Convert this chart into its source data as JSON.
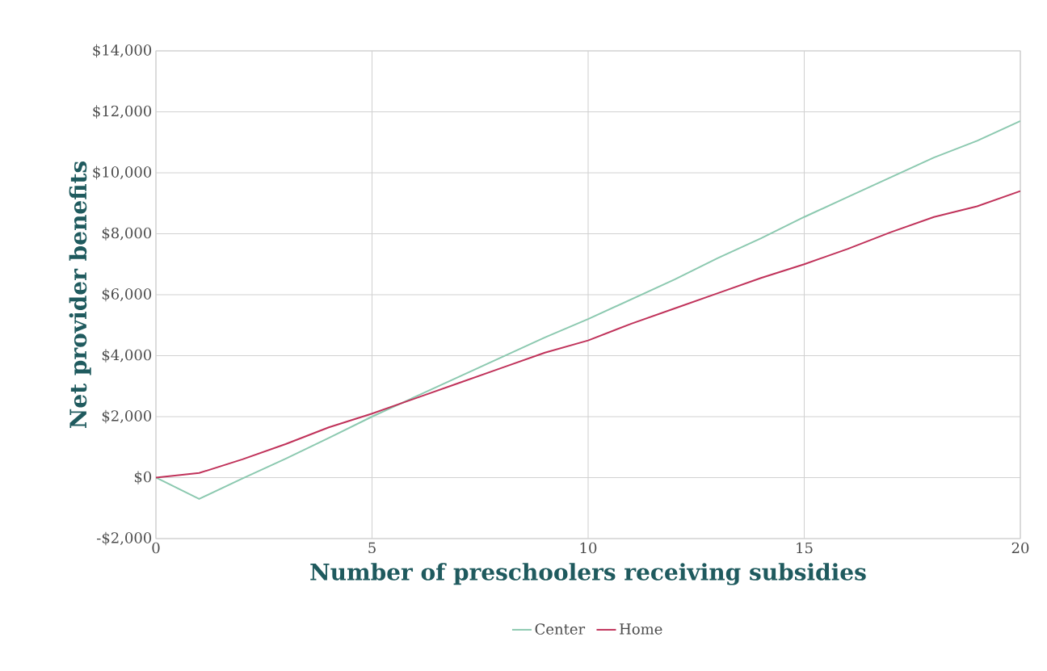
{
  "chart_data": {
    "type": "line",
    "xlabel": "Number of preschoolers receiving subsidies",
    "ylabel": "Net provider benefits",
    "x": [
      0,
      1,
      2,
      3,
      4,
      5,
      6,
      7,
      8,
      9,
      10,
      11,
      12,
      13,
      14,
      15,
      16,
      17,
      18,
      19,
      20
    ],
    "series": [
      {
        "name": "Center",
        "color": "#8cc9b0",
        "values": [
          0,
          -700,
          -30,
          620,
          1300,
          2000,
          2650,
          3300,
          3950,
          4600,
          5200,
          5850,
          6500,
          7200,
          7850,
          8550,
          9200,
          9850,
          10500,
          11050,
          11700
        ]
      },
      {
        "name": "Home",
        "color": "#c0325a",
        "values": [
          0,
          150,
          600,
          1100,
          1650,
          2100,
          2600,
          3100,
          3600,
          4100,
          4500,
          5050,
          5550,
          6050,
          6550,
          7000,
          7500,
          8050,
          8550,
          8900,
          9400
        ]
      }
    ],
    "xlim": [
      0,
      20
    ],
    "xticks": [
      0,
      5,
      10,
      15,
      20
    ],
    "ylim": [
      -2000,
      14000
    ],
    "yticks": [
      {
        "value": -2000,
        "label": "-$2,000"
      },
      {
        "value": 0,
        "label": "$0"
      },
      {
        "value": 2000,
        "label": "$2,000"
      },
      {
        "value": 4000,
        "label": "$4,000"
      },
      {
        "value": 6000,
        "label": "$6,000"
      },
      {
        "value": 8000,
        "label": "$8,000"
      },
      {
        "value": 10000,
        "label": "$10,000"
      },
      {
        "value": 12000,
        "label": "$12,000"
      },
      {
        "value": 14000,
        "label": "$14,000"
      }
    ],
    "grid": true,
    "legend": "bottom",
    "marker": "none",
    "line_style": "solid"
  }
}
